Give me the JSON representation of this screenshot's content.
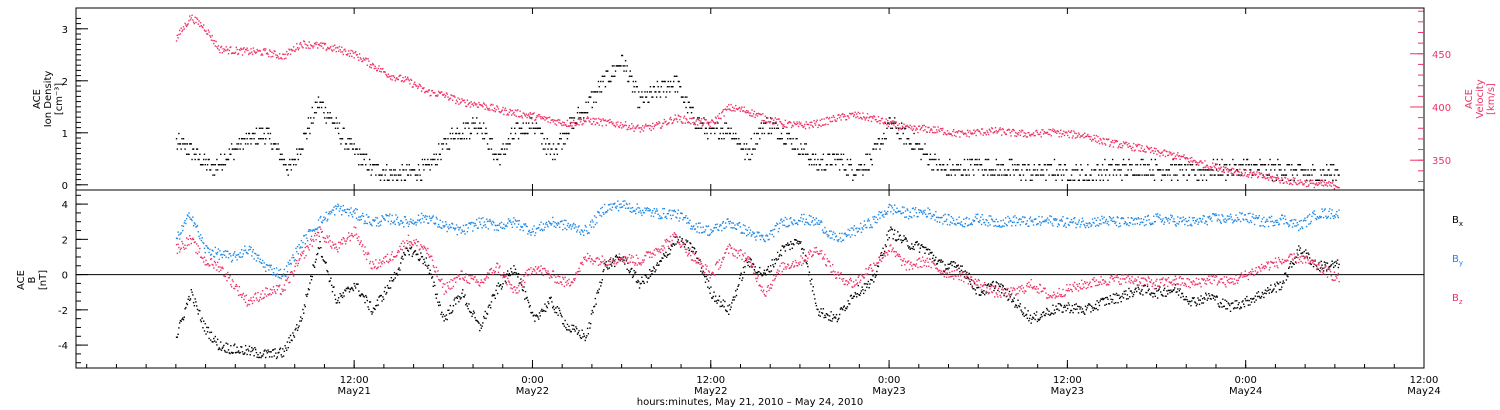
{
  "chart_data": [
    {
      "type": "scatter",
      "ylabel_left": [
        "ACE",
        "Ion Density",
        "[cm⁻³]"
      ],
      "ylabel_right": [
        "ACE",
        "Velocity",
        "[km/s]"
      ],
      "yticks_left": [
        "0",
        "1",
        "2",
        "3"
      ],
      "yticks_right": [
        "350",
        "400",
        "450"
      ],
      "ylim_left": [
        -0.1,
        3.4
      ],
      "ylim_right": [
        322,
        493
      ],
      "series": [
        {
          "axis": "left",
          "color": "#000000",
          "x": [
            0,
            0.04,
            0.1,
            0.18,
            0.25,
            0.32,
            0.4,
            0.48,
            0.55,
            0.62,
            0.7,
            0.78,
            0.85,
            0.9,
            0.95,
            1.0,
            1.05,
            1.1,
            1.15,
            1.2,
            1.25,
            1.3,
            1.35,
            1.4,
            1.45,
            1.5,
            1.55,
            1.6,
            1.65,
            1.7,
            1.75,
            1.8,
            1.85,
            1.9,
            1.95,
            2.0,
            2.05,
            2.1,
            2.15,
            2.2,
            2.25,
            2.3,
            2.35,
            2.4,
            2.45,
            2.5,
            2.55,
            2.6,
            2.65,
            2.7,
            2.75,
            2.8,
            2.85,
            2.9,
            2.95,
            3.0,
            3.05,
            3.1,
            3.15,
            3.2,
            3.26
          ],
          "y": [
            0.8,
            0.7,
            0.3,
            0.8,
            1.0,
            0.3,
            1.6,
            0.8,
            0.3,
            0.2,
            0.3,
            1.0,
            1.2,
            0.5,
            1.0,
            1.2,
            0.6,
            1.1,
            1.5,
            2.0,
            2.4,
            1.6,
            1.8,
            2.0,
            1.3,
            1.0,
            1.1,
            0.6,
            1.2,
            1.0,
            0.7,
            0.4,
            0.5,
            0.3,
            0.5,
            1.2,
            0.9,
            0.6,
            0.3,
            0.3,
            0.4,
            0.3,
            0.3,
            0.25,
            0.3,
            0.25,
            0.2,
            0.3,
            0.3,
            0.35,
            0.3,
            0.3,
            0.25,
            0.3,
            0.3,
            0.35,
            0.3,
            0.3,
            0.25,
            0.2,
            0.3
          ]
        },
        {
          "axis": "right",
          "color": "#ee3366",
          "x": [
            0,
            0.04,
            0.08,
            0.12,
            0.18,
            0.25,
            0.3,
            0.35,
            0.4,
            0.45,
            0.5,
            0.55,
            0.6,
            0.65,
            0.7,
            0.75,
            0.8,
            0.85,
            0.9,
            0.95,
            1.0,
            1.05,
            1.1,
            1.15,
            1.2,
            1.25,
            1.3,
            1.35,
            1.4,
            1.45,
            1.5,
            1.55,
            1.6,
            1.65,
            1.7,
            1.75,
            1.8,
            1.85,
            1.9,
            1.95,
            2.0,
            2.05,
            2.1,
            2.15,
            2.2,
            2.25,
            2.3,
            2.35,
            2.4,
            2.45,
            2.5,
            2.55,
            2.6,
            2.65,
            2.7,
            2.75,
            2.8,
            2.85,
            2.9,
            2.95,
            3.0,
            3.05,
            3.1,
            3.15,
            3.2,
            3.26
          ],
          "y": [
            465,
            485,
            475,
            455,
            453,
            452,
            448,
            460,
            458,
            455,
            450,
            440,
            430,
            425,
            415,
            412,
            405,
            403,
            398,
            395,
            392,
            388,
            385,
            388,
            386,
            384,
            380,
            383,
            390,
            387,
            385,
            400,
            397,
            390,
            385,
            383,
            385,
            390,
            393,
            390,
            385,
            380,
            380,
            378,
            375,
            377,
            378,
            376,
            375,
            377,
            375,
            374,
            368,
            365,
            362,
            358,
            355,
            350,
            345,
            342,
            338,
            335,
            332,
            330,
            328,
            327
          ]
        }
      ]
    },
    {
      "type": "scatter",
      "ylabel": [
        "ACE",
        "B",
        "[nT]"
      ],
      "yticks": [
        "-4",
        "-2",
        "0",
        "2",
        "4"
      ],
      "ylim": [
        -5.3,
        4.8
      ],
      "zero_line": true,
      "legend": [
        "Bx",
        "By",
        "Bz"
      ],
      "legend_placement": "right",
      "series": [
        {
          "name": "Bx",
          "color": "#000000",
          "x": [
            0,
            0.04,
            0.08,
            0.12,
            0.16,
            0.2,
            0.25,
            0.3,
            0.35,
            0.4,
            0.45,
            0.5,
            0.55,
            0.6,
            0.65,
            0.7,
            0.75,
            0.8,
            0.85,
            0.9,
            0.95,
            1.0,
            1.05,
            1.1,
            1.15,
            1.2,
            1.25,
            1.3,
            1.35,
            1.4,
            1.45,
            1.5,
            1.55,
            1.6,
            1.65,
            1.7,
            1.75,
            1.8,
            1.85,
            1.9,
            1.95,
            2.0,
            2.05,
            2.1,
            2.15,
            2.2,
            2.25,
            2.3,
            2.35,
            2.4,
            2.45,
            2.5,
            2.55,
            2.6,
            2.65,
            2.7,
            2.75,
            2.8,
            2.85,
            2.9,
            2.95,
            3.0,
            3.05,
            3.1,
            3.15,
            3.2,
            3.26
          ],
          "y": [
            -3.5,
            -1.0,
            -3.0,
            -4.0,
            -4.2,
            -4.3,
            -4.5,
            -4.4,
            -2.5,
            1.8,
            -1.5,
            -0.5,
            -2.0,
            -0.5,
            1.5,
            0.8,
            -2.5,
            -1.0,
            -3.0,
            -0.8,
            0.5,
            -2.5,
            -1.5,
            -3.0,
            -3.5,
            0.5,
            1.0,
            -0.5,
            0.5,
            2.0,
            1.5,
            -1.0,
            -2.0,
            0.8,
            0.0,
            1.5,
            2.0,
            -2.0,
            -2.5,
            -1.0,
            -0.5,
            2.5,
            1.8,
            1.5,
            0.5,
            0.5,
            -1.0,
            -0.5,
            -1.5,
            -2.5,
            -2.0,
            -1.8,
            -2.0,
            -1.5,
            -1.2,
            -0.8,
            -1.0,
            -0.8,
            -1.5,
            -1.2,
            -1.8,
            -1.5,
            -1.0,
            -0.5,
            1.5,
            0.5,
            0.6
          ]
        },
        {
          "name": "By",
          "color": "#1e88e5",
          "x": [
            0,
            0.04,
            0.08,
            0.12,
            0.16,
            0.2,
            0.25,
            0.3,
            0.35,
            0.4,
            0.45,
            0.5,
            0.55,
            0.6,
            0.65,
            0.7,
            0.75,
            0.8,
            0.85,
            0.9,
            0.95,
            1.0,
            1.05,
            1.1,
            1.15,
            1.2,
            1.25,
            1.3,
            1.35,
            1.4,
            1.45,
            1.5,
            1.55,
            1.6,
            1.65,
            1.7,
            1.75,
            1.8,
            1.85,
            1.9,
            1.95,
            2.0,
            2.05,
            2.1,
            2.15,
            2.2,
            2.25,
            2.3,
            2.35,
            2.4,
            2.45,
            2.5,
            2.55,
            2.6,
            2.65,
            2.7,
            2.75,
            2.8,
            2.85,
            2.9,
            2.95,
            3.0,
            3.05,
            3.1,
            3.15,
            3.2,
            3.26
          ],
          "y": [
            2.0,
            3.5,
            1.5,
            1.2,
            1.0,
            1.5,
            0.5,
            0.0,
            1.8,
            3.0,
            3.8,
            3.5,
            3.0,
            3.2,
            3.0,
            3.3,
            2.8,
            2.5,
            3.0,
            2.8,
            3.0,
            2.5,
            3.0,
            2.8,
            2.5,
            3.8,
            4.0,
            3.7,
            3.5,
            3.5,
            2.8,
            2.5,
            3.0,
            2.5,
            2.0,
            3.0,
            3.2,
            3.0,
            2.0,
            2.5,
            3.0,
            3.8,
            3.5,
            3.6,
            3.2,
            3.0,
            3.2,
            3.0,
            3.1,
            3.0,
            3.1,
            3.0,
            3.0,
            3.1,
            3.0,
            3.0,
            3.2,
            3.1,
            3.0,
            3.2,
            3.2,
            3.3,
            3.0,
            3.2,
            2.8,
            3.5,
            3.5
          ]
        },
        {
          "name": "Bz",
          "color": "#ee3366",
          "x": [
            0,
            0.04,
            0.08,
            0.12,
            0.16,
            0.2,
            0.25,
            0.3,
            0.35,
            0.4,
            0.45,
            0.5,
            0.55,
            0.6,
            0.65,
            0.7,
            0.75,
            0.8,
            0.85,
            0.9,
            0.95,
            1.0,
            1.05,
            1.1,
            1.15,
            1.2,
            1.25,
            1.3,
            1.35,
            1.4,
            1.45,
            1.5,
            1.55,
            1.6,
            1.65,
            1.7,
            1.75,
            1.8,
            1.85,
            1.9,
            1.95,
            2.0,
            2.05,
            2.1,
            2.15,
            2.2,
            2.25,
            2.3,
            2.35,
            2.4,
            2.45,
            2.5,
            2.55,
            2.6,
            2.65,
            2.7,
            2.75,
            2.8,
            2.85,
            2.9,
            2.95,
            3.0,
            3.05,
            3.1,
            3.15,
            3.2,
            3.26
          ],
          "y": [
            1.5,
            2.0,
            0.8,
            0.5,
            -0.5,
            -1.5,
            -1.0,
            -0.8,
            1.0,
            2.5,
            1.5,
            2.5,
            0.5,
            1.0,
            2.0,
            1.5,
            -0.8,
            0.0,
            -0.5,
            0.5,
            -1.0,
            0.5,
            0.0,
            -0.5,
            1.0,
            0.8,
            1.0,
            0.8,
            1.5,
            2.2,
            1.0,
            0.0,
            1.5,
            1.0,
            -1.0,
            0.5,
            0.8,
            1.5,
            0.0,
            -0.5,
            0.5,
            1.5,
            0.5,
            0.8,
            0.2,
            0.0,
            -0.5,
            -1.0,
            -1.0,
            -0.5,
            -1.2,
            -0.8,
            -0.5,
            -0.3,
            -0.2,
            -0.3,
            -0.5,
            -0.3,
            -0.5,
            -0.2,
            -0.4,
            0.0,
            0.5,
            0.8,
            1.0,
            0.5,
            -0.2
          ]
        }
      ]
    }
  ],
  "axis": {
    "xlabel": "hours:minutes, May 21, 2010 – May 24, 2010",
    "x_unit": "days after 00:00 May 21, 2010",
    "xlim": [
      -0.28,
      3.5
    ],
    "ticks": [
      {
        "time": "12:00",
        "date": "May21"
      },
      {
        "time": "0:00",
        "date": "May22"
      },
      {
        "time": "12:00",
        "date": "May22"
      },
      {
        "time": "0:00",
        "date": "May23"
      },
      {
        "time": "12:00",
        "date": "May23"
      },
      {
        "time": "0:00",
        "date": "May24"
      },
      {
        "time": "12:00",
        "date": "May24"
      }
    ]
  }
}
